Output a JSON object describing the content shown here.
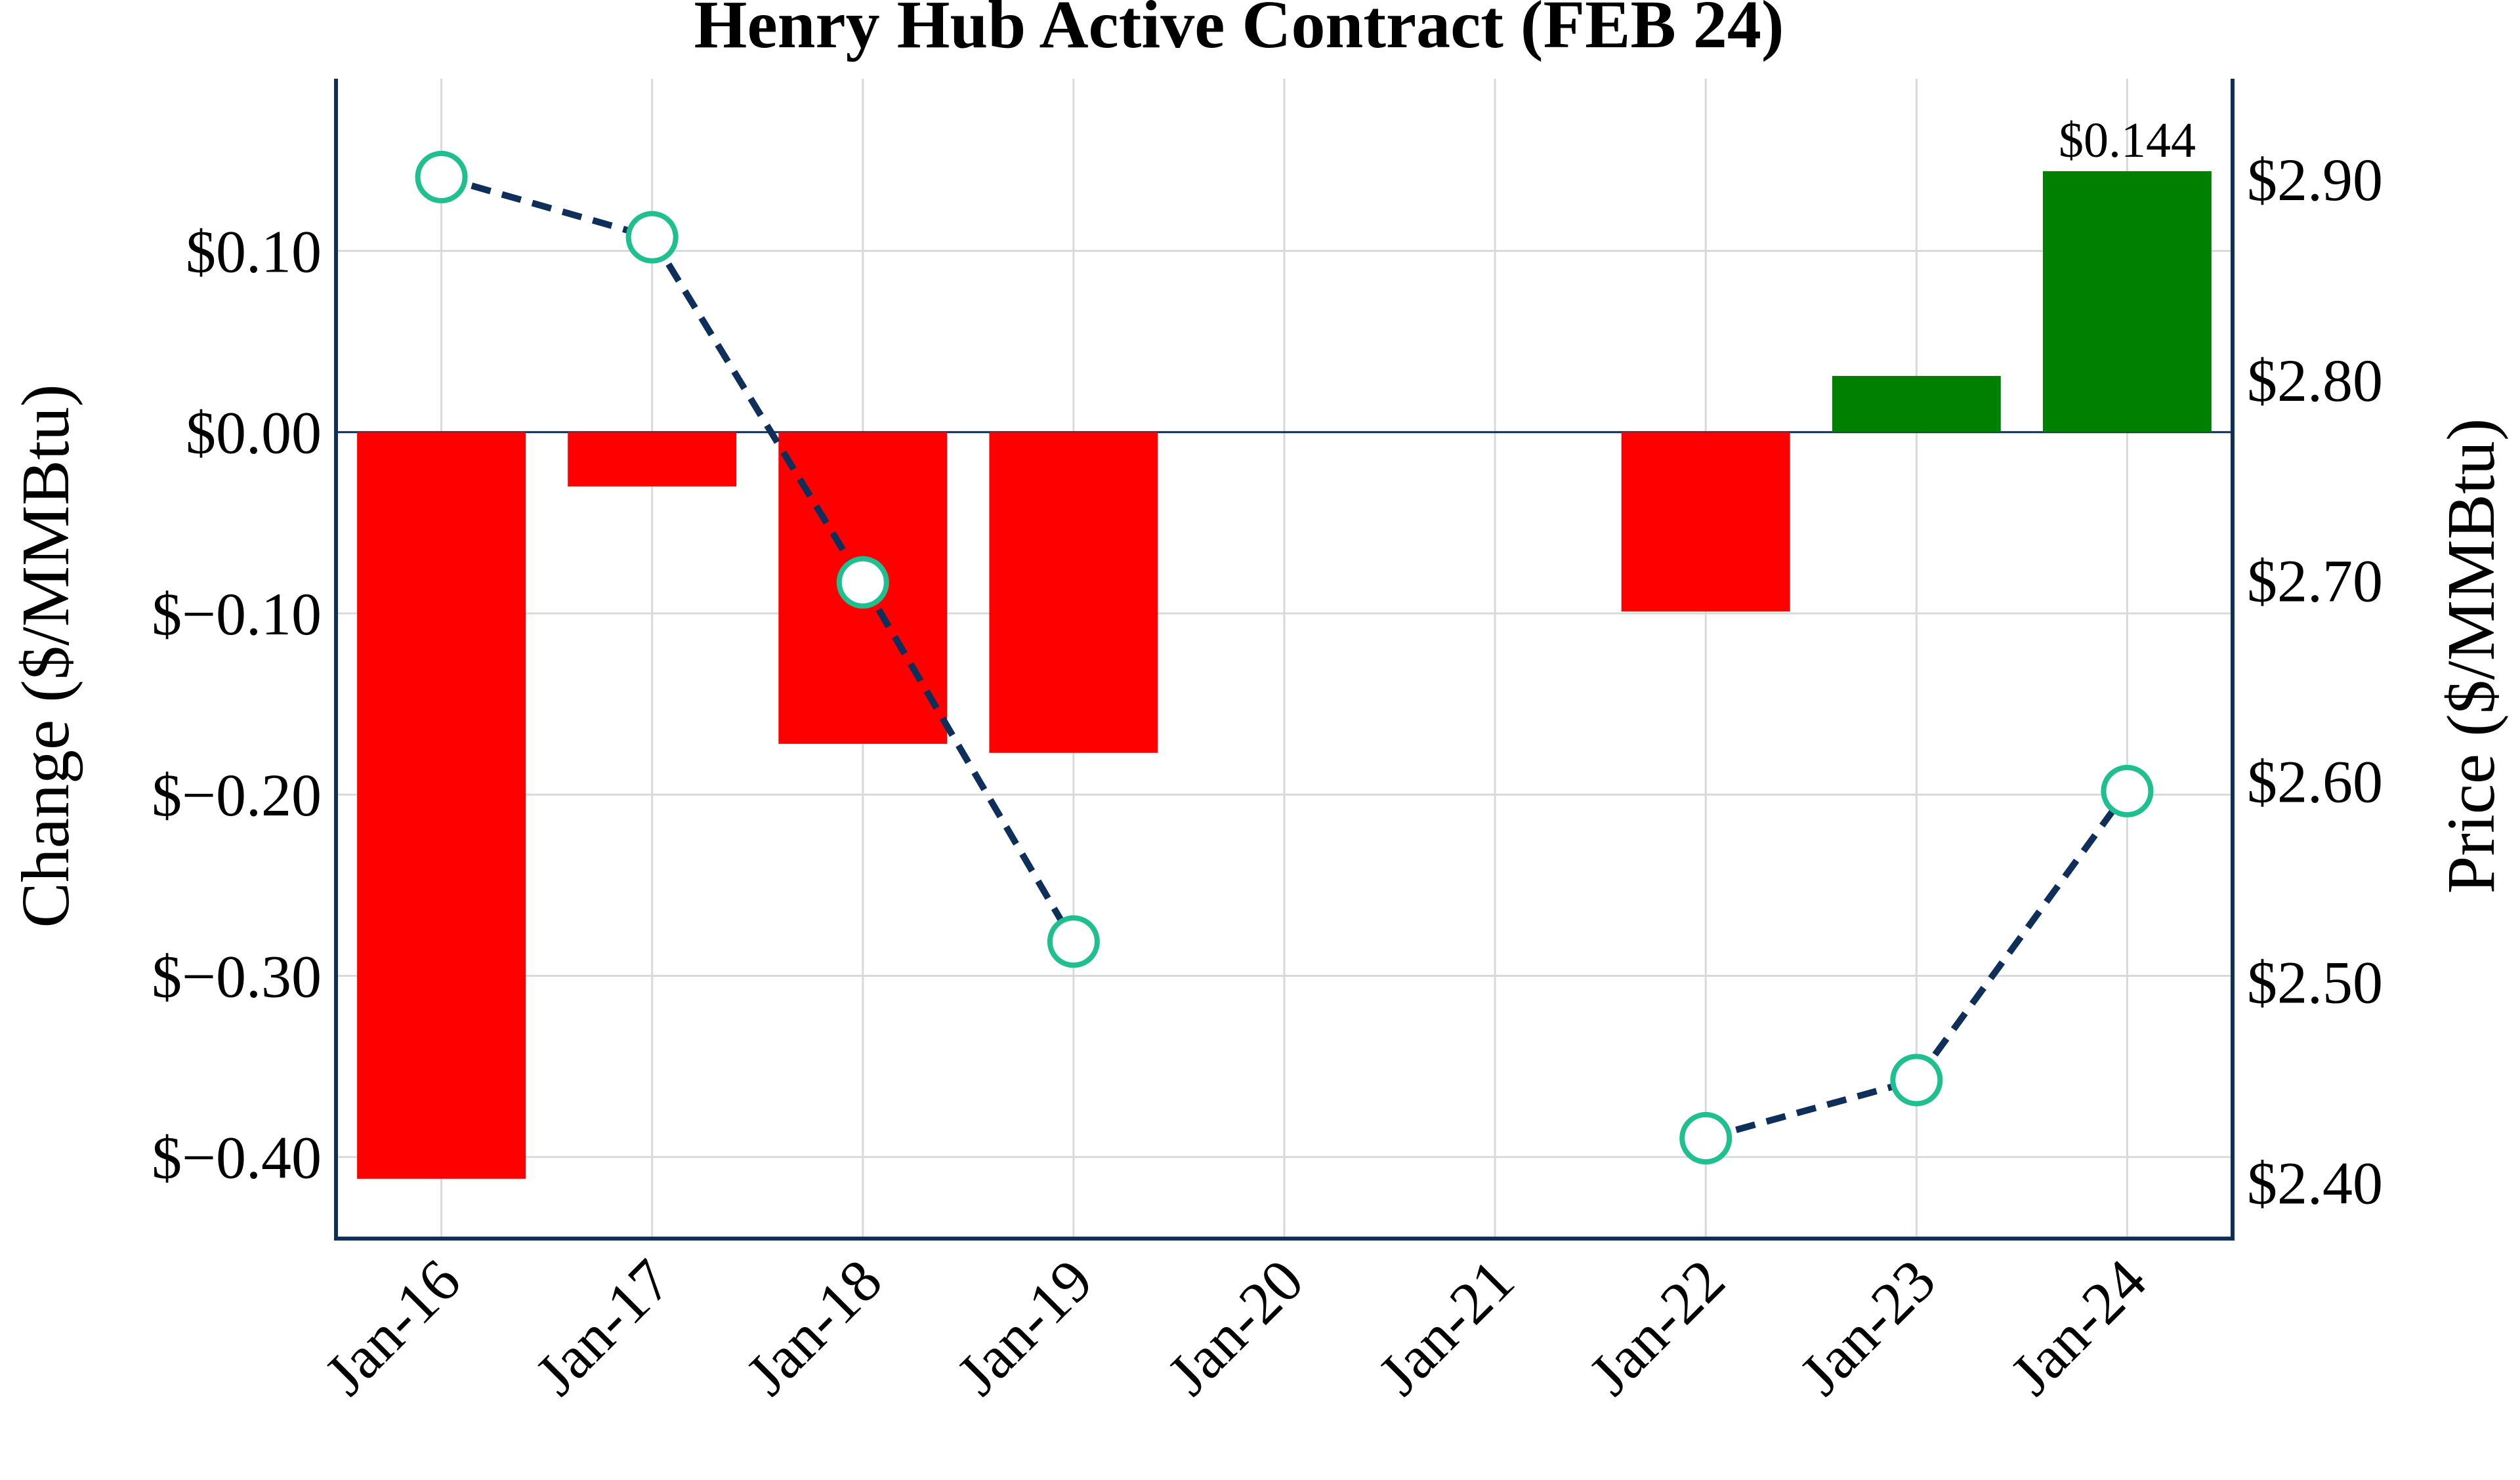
{
  "chart_data": {
    "type": "bar",
    "title": "Henry Hub Active Contract (FEB 24)",
    "categories": [
      "Jan-16",
      "Jan-17",
      "Jan-18",
      "Jan-19",
      "Jan-20",
      "Jan-21",
      "Jan-22",
      "Jan-23",
      "Jan-24"
    ],
    "ylabel_left": "Change ($/MMBtu)",
    "ylabel_right": "Price ($/MMBtu)",
    "ylim_left": [
      -0.445,
      0.195
    ],
    "ylim_right": [
      2.372,
      2.95
    ],
    "yticks_left": [
      {
        "value": 0.1,
        "label": "$0.10"
      },
      {
        "value": 0.0,
        "label": "$0.00"
      },
      {
        "value": -0.1,
        "label": "$−0.10"
      },
      {
        "value": -0.2,
        "label": "$−0.20"
      },
      {
        "value": -0.3,
        "label": "$−0.30"
      },
      {
        "value": -0.4,
        "label": "$−0.40"
      }
    ],
    "yticks_right": [
      {
        "value": 2.9,
        "label": "$2.90"
      },
      {
        "value": 2.8,
        "label": "$2.80"
      },
      {
        "value": 2.7,
        "label": "$2.70"
      },
      {
        "value": 2.6,
        "label": "$2.60"
      },
      {
        "value": 2.5,
        "label": "$2.50"
      },
      {
        "value": 2.4,
        "label": "$2.40"
      }
    ],
    "series": [
      {
        "kind": "bar",
        "axis": "left",
        "values": [
          -0.412,
          -0.03,
          -0.172,
          -0.177,
          null,
          null,
          -0.099,
          0.031,
          0.144
        ]
      },
      {
        "kind": "line",
        "axis": "right",
        "values": [
          2.901,
          2.871,
          2.699,
          2.52,
          null,
          null,
          2.422,
          2.451,
          2.595
        ]
      }
    ],
    "data_labels": [
      {
        "index": 8,
        "text": "$0.144"
      }
    ],
    "colors": {
      "positive_bar": "#008000",
      "negative_bar": "#ff0000",
      "line": "#0d2f5a",
      "marker_edge": "#1fbf8f",
      "marker_fill": "#ffffff",
      "axis": "#0d2f5a",
      "grid": "#d9d9d9",
      "text": "#000000"
    },
    "grid": true
  }
}
